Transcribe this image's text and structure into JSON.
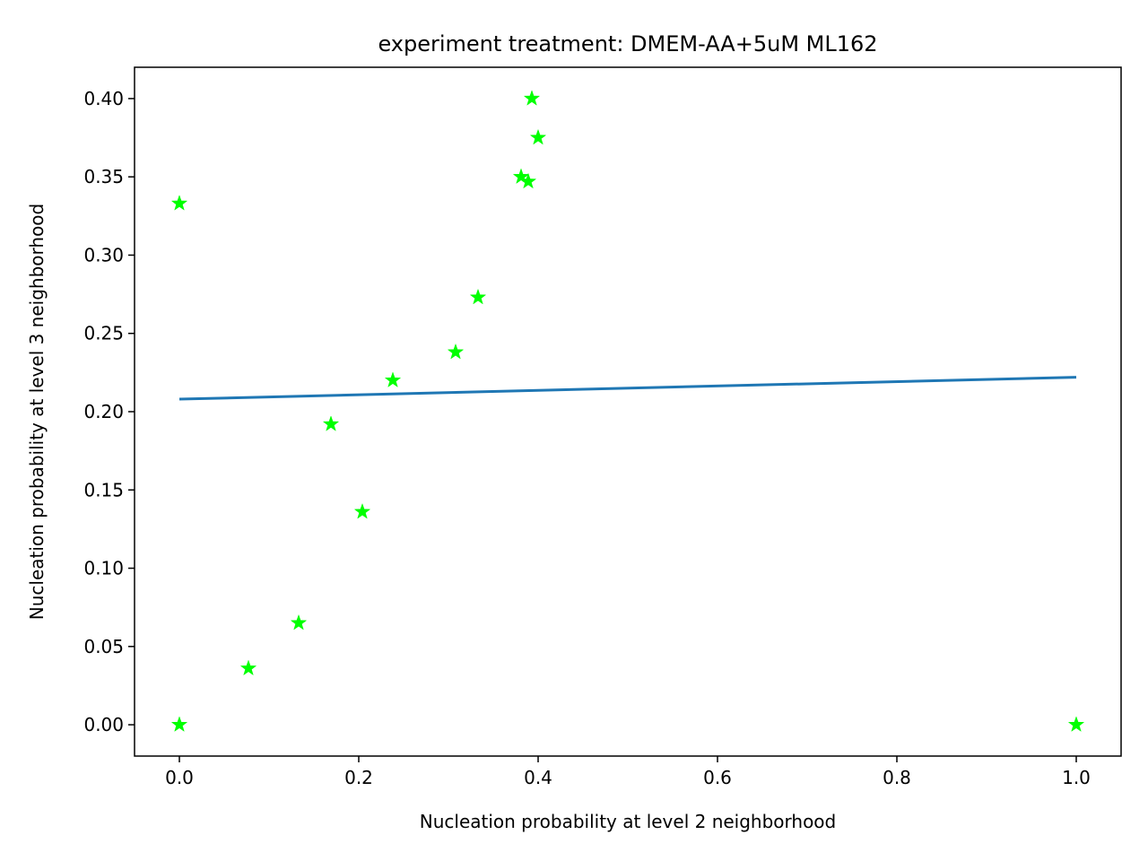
{
  "chart_data": {
    "type": "scatter",
    "title": "experiment treatment: DMEM-AA+5uM ML162",
    "xlabel": "Nucleation probability at level 2 neighborhood",
    "ylabel": "Nucleation probability at level 3 neighborhood",
    "xlim": [
      -0.05,
      1.05
    ],
    "ylim": [
      -0.02,
      0.42
    ],
    "xticks": [
      0.0,
      0.2,
      0.4,
      0.6,
      0.8,
      1.0
    ],
    "xtick_labels": [
      "0.0",
      "0.2",
      "0.4",
      "0.6",
      "0.8",
      "1.0"
    ],
    "yticks": [
      0.0,
      0.05,
      0.1,
      0.15,
      0.2,
      0.25,
      0.3,
      0.35,
      0.4
    ],
    "ytick_labels": [
      "0.00",
      "0.05",
      "0.10",
      "0.15",
      "0.20",
      "0.25",
      "0.30",
      "0.35",
      "0.40"
    ],
    "grid": false,
    "series": [
      {
        "type": "scatter",
        "marker": "star",
        "color": "#00ff00",
        "points": [
          {
            "x": 0.0,
            "y": 0.333
          },
          {
            "x": 0.0,
            "y": 0.0
          },
          {
            "x": 0.077,
            "y": 0.036
          },
          {
            "x": 0.133,
            "y": 0.065
          },
          {
            "x": 0.169,
            "y": 0.192
          },
          {
            "x": 0.204,
            "y": 0.136
          },
          {
            "x": 0.238,
            "y": 0.22
          },
          {
            "x": 0.308,
            "y": 0.238
          },
          {
            "x": 0.333,
            "y": 0.273
          },
          {
            "x": 0.381,
            "y": 0.35
          },
          {
            "x": 0.389,
            "y": 0.347
          },
          {
            "x": 0.393,
            "y": 0.4
          },
          {
            "x": 0.4,
            "y": 0.375
          },
          {
            "x": 1.0,
            "y": 0.0
          }
        ]
      },
      {
        "type": "line",
        "color": "#1f77b4",
        "points": [
          {
            "x": 0.0,
            "y": 0.208
          },
          {
            "x": 1.0,
            "y": 0.222
          }
        ]
      }
    ]
  }
}
